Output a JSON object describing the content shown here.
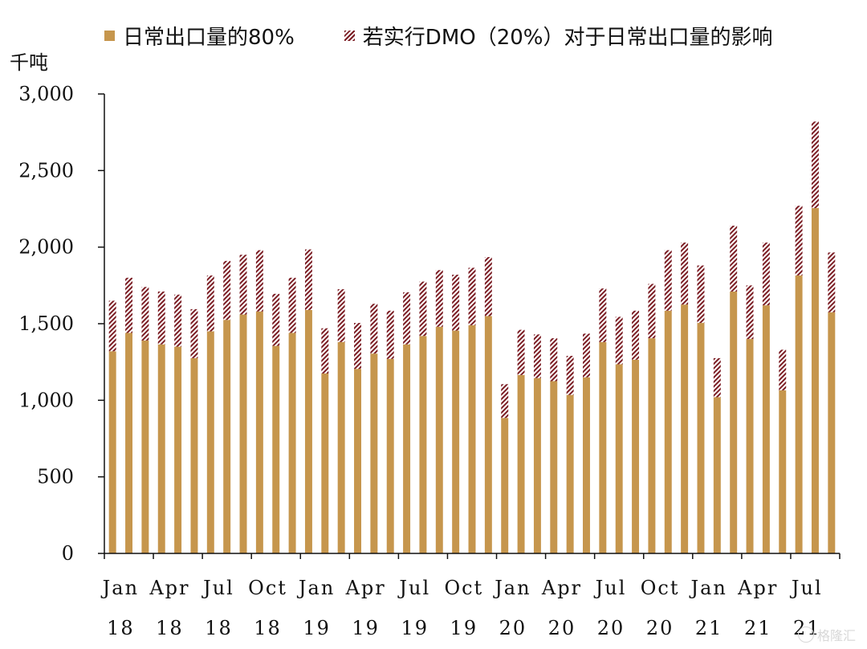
{
  "chart_data": {
    "type": "bar",
    "stacked": true,
    "unit_label": "千吨",
    "ylim": [
      0,
      3000
    ],
    "yticks": [
      "0",
      "500",
      "1,000",
      "1,500",
      "2,000",
      "2,500",
      "3,000"
    ],
    "ytick_values": [
      0,
      500,
      1000,
      1500,
      2000,
      2500,
      3000
    ],
    "xtick_labels": [
      {
        "month": "Jan",
        "year": "18",
        "index": 0
      },
      {
        "month": "Apr",
        "year": "18",
        "index": 3
      },
      {
        "month": "Jul",
        "year": "18",
        "index": 6
      },
      {
        "month": "Oct",
        "year": "18",
        "index": 9
      },
      {
        "month": "Jan",
        "year": "19",
        "index": 12
      },
      {
        "month": "Apr",
        "year": "19",
        "index": 15
      },
      {
        "month": "Jul",
        "year": "19",
        "index": 18
      },
      {
        "month": "Oct",
        "year": "19",
        "index": 21
      },
      {
        "month": "Jan",
        "year": "20",
        "index": 24
      },
      {
        "month": "Apr",
        "year": "20",
        "index": 27
      },
      {
        "month": "Jul",
        "year": "20",
        "index": 30
      },
      {
        "month": "Oct",
        "year": "20",
        "index": 33
      },
      {
        "month": "Jan",
        "year": "21",
        "index": 36
      },
      {
        "month": "Apr",
        "year": "21",
        "index": 39
      },
      {
        "month": "Jul",
        "year": "21",
        "index": 42
      }
    ],
    "categories": [
      "2018-01",
      "2018-02",
      "2018-03",
      "2018-04",
      "2018-05",
      "2018-06",
      "2018-07",
      "2018-08",
      "2018-09",
      "2018-10",
      "2018-11",
      "2018-12",
      "2019-01",
      "2019-02",
      "2019-03",
      "2019-04",
      "2019-05",
      "2019-06",
      "2019-07",
      "2019-08",
      "2019-09",
      "2019-10",
      "2019-11",
      "2019-12",
      "2020-01",
      "2020-02",
      "2020-03",
      "2020-04",
      "2020-05",
      "2020-06",
      "2020-07",
      "2020-08",
      "2020-09",
      "2020-10",
      "2020-11",
      "2020-12",
      "2021-01",
      "2021-02",
      "2021-03",
      "2021-04",
      "2021-05",
      "2021-06",
      "2021-07",
      "2021-08",
      "2021-09"
    ],
    "series": [
      {
        "name": "日常出口量的80%",
        "color": "#c6964d",
        "pattern": "solid",
        "values": [
          1320,
          1440,
          1390,
          1365,
          1350,
          1275,
          1450,
          1525,
          1560,
          1580,
          1355,
          1440,
          1590,
          1175,
          1380,
          1205,
          1305,
          1270,
          1365,
          1420,
          1480,
          1455,
          1490,
          1550,
          885,
          1165,
          1145,
          1125,
          1035,
          1150,
          1380,
          1235,
          1265,
          1405,
          1585,
          1625,
          1505,
          1020,
          1710,
          1400,
          1620,
          1065,
          1815,
          2255,
          1575
        ]
      },
      {
        "name": "若实行DMO（20%）对于日常出口量的影响",
        "color": "#7b1d24",
        "pattern": "hatch",
        "values": [
          330,
          360,
          350,
          345,
          340,
          320,
          365,
          385,
          390,
          400,
          340,
          360,
          395,
          295,
          345,
          300,
          325,
          315,
          340,
          355,
          370,
          365,
          375,
          385,
          220,
          295,
          285,
          280,
          255,
          285,
          350,
          310,
          320,
          355,
          395,
          405,
          375,
          255,
          430,
          350,
          410,
          265,
          455,
          565,
          390
        ]
      }
    ]
  },
  "watermark": {
    "icon": "gelonghui-logo-icon",
    "text": "格隆汇"
  }
}
